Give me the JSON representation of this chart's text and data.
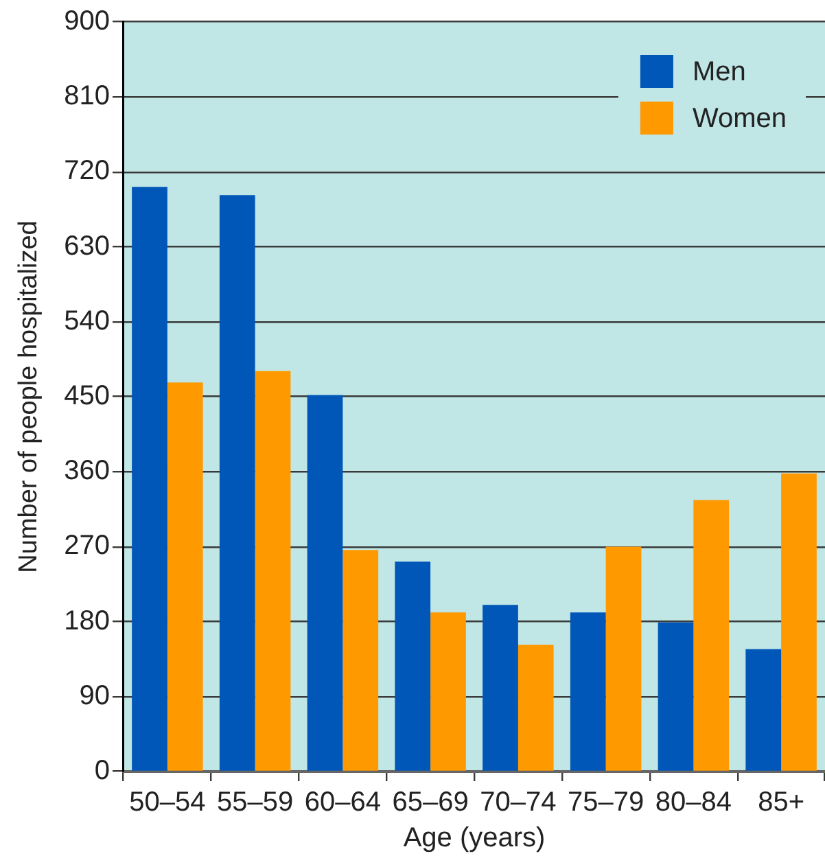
{
  "chart_data": {
    "type": "bar",
    "xlabel": "Age (years)",
    "ylabel": "Number of people hospitalized",
    "categories": [
      "50–54",
      "55–59",
      "60–64",
      "65–69",
      "70–74",
      "75–79",
      "80–84",
      "85+"
    ],
    "series": [
      {
        "name": "Men",
        "color": "#0057b8",
        "values": [
          702,
          692,
          452,
          252,
          200,
          191,
          179,
          147
        ]
      },
      {
        "name": "Women",
        "color": "#ff9900",
        "values": [
          467,
          481,
          266,
          191,
          152,
          270,
          326,
          358
        ]
      }
    ],
    "ylim": [
      0,
      900
    ],
    "yticks": [
      0,
      90,
      180,
      270,
      360,
      450,
      540,
      630,
      720,
      810,
      900
    ],
    "grid": "y",
    "legend": "top right"
  }
}
